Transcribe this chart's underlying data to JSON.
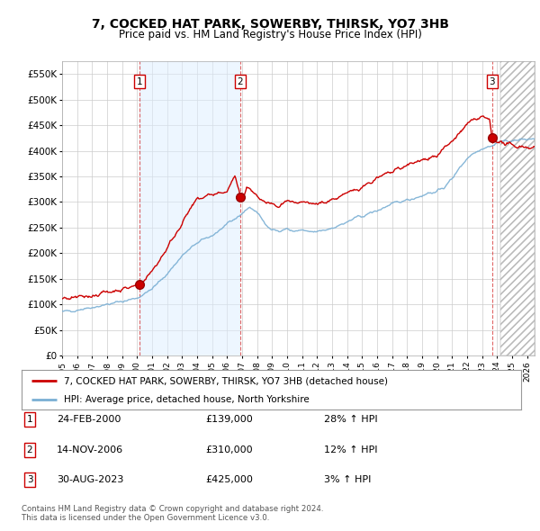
{
  "title": "7, COCKED HAT PARK, SOWERBY, THIRSK, YO7 3HB",
  "subtitle": "Price paid vs. HM Land Registry's House Price Index (HPI)",
  "ylim": [
    0,
    575000
  ],
  "yticks": [
    0,
    50000,
    100000,
    150000,
    200000,
    250000,
    300000,
    350000,
    400000,
    450000,
    500000,
    550000
  ],
  "ytick_labels": [
    "£0",
    "£50K",
    "£100K",
    "£150K",
    "£200K",
    "£250K",
    "£300K",
    "£350K",
    "£400K",
    "£450K",
    "£500K",
    "£550K"
  ],
  "xlim_start": 1995.0,
  "xlim_end": 2026.5,
  "xticks": [
    1995,
    1996,
    1997,
    1998,
    1999,
    2000,
    2001,
    2002,
    2003,
    2004,
    2005,
    2006,
    2007,
    2008,
    2009,
    2010,
    2011,
    2012,
    2013,
    2014,
    2015,
    2016,
    2017,
    2018,
    2019,
    2020,
    2021,
    2022,
    2023,
    2024,
    2025,
    2026
  ],
  "sale_dates": [
    2000.144,
    2006.873,
    2023.664
  ],
  "sale_prices": [
    139000,
    310000,
    425000
  ],
  "sale_labels": [
    "1",
    "2",
    "3"
  ],
  "legend_property_label": "7, COCKED HAT PARK, SOWERBY, THIRSK, YO7 3HB (detached house)",
  "legend_hpi_label": "HPI: Average price, detached house, North Yorkshire",
  "property_line_color": "#cc0000",
  "hpi_line_color": "#7aafd4",
  "hpi_fill_color": "#ddeeff",
  "sale_box_color": "#cc0000",
  "shade_between_1_2": true,
  "hatch_start": 2024.25,
  "table_rows": [
    {
      "num": "1",
      "date": "24-FEB-2000",
      "price": "£139,000",
      "hpi": "28% ↑ HPI"
    },
    {
      "num": "2",
      "date": "14-NOV-2006",
      "price": "£310,000",
      "hpi": "12% ↑ HPI"
    },
    {
      "num": "3",
      "date": "30-AUG-2023",
      "price": "£425,000",
      "hpi": "3% ↑ HPI"
    }
  ],
  "footnote1": "Contains HM Land Registry data © Crown copyright and database right 2024.",
  "footnote2": "This data is licensed under the Open Government Licence v3.0.",
  "background_color": "#ffffff",
  "grid_color": "#cccccc"
}
